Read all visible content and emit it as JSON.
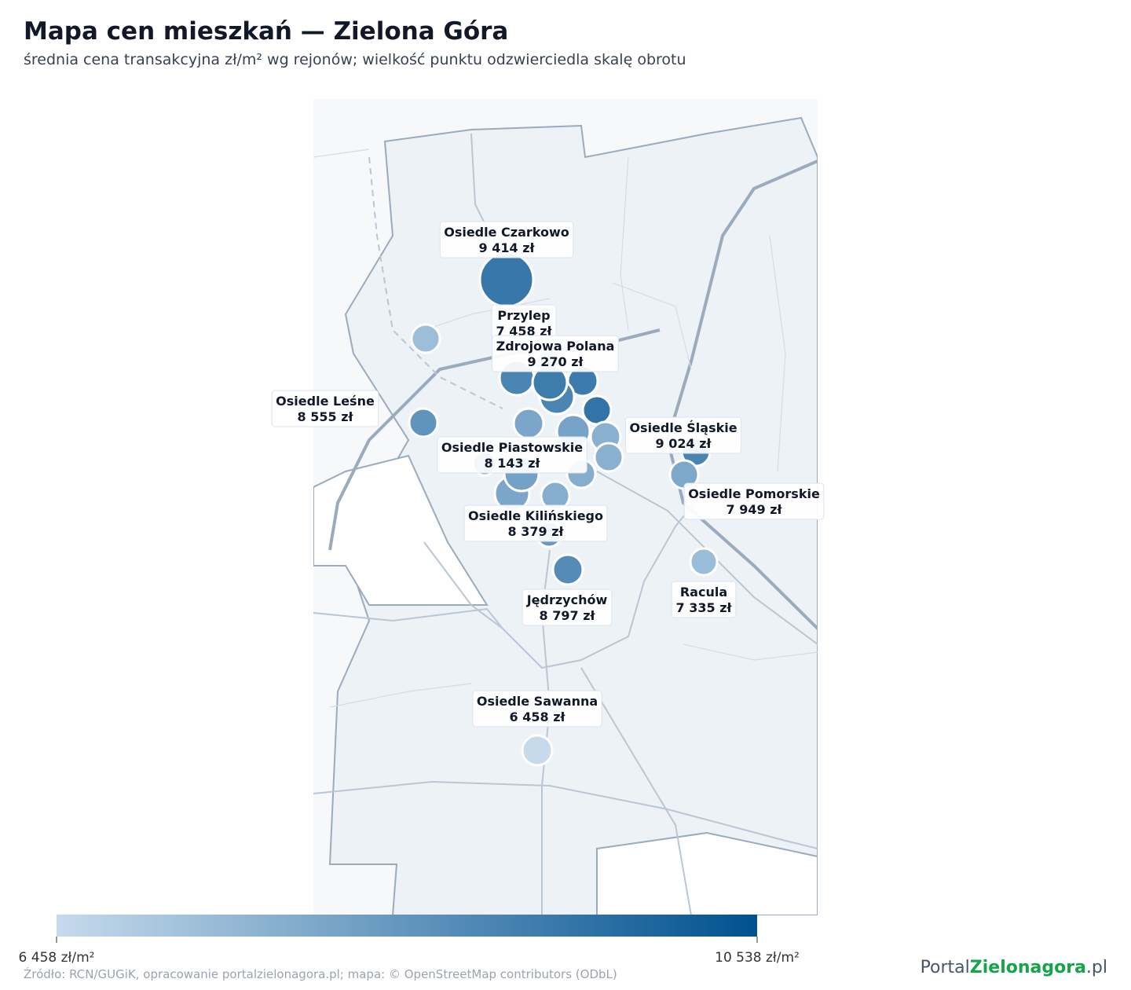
{
  "header": {
    "title": "Mapa cen mieszkań — Zielona Góra",
    "subtitle": "średnia cena transakcyjna zł/m² wg rejonów; wielkość punktu odzwierciedla skalę obrotu"
  },
  "districts": {
    "names": [
      "Osiedle Czarkowo",
      "Przylep",
      "Zdrojowa Polana",
      "Osiedle Leśne",
      "Osiedle Piastowskie",
      "Osiedle Śląskie",
      "Osiedle Pomorskie",
      "Osiedle Kilińskiego",
      "Jędrzychów",
      "Racula",
      "Osiedle Sawanna"
    ],
    "values": [
      9414,
      7458,
      9270,
      8555,
      8143,
      9024,
      7949,
      8379,
      8797,
      7335,
      6458
    ],
    "value_labels": [
      "9 414 zł",
      "7 458 zł",
      "9 270 zł",
      "8 555 zł",
      "8 143 zł",
      "9 024 zł",
      "7 949 zł",
      "8 379 zł",
      "8 797 zł",
      "7 335 zł",
      "6 458 zł"
    ]
  },
  "other_values": [
    7300,
    9000,
    9300,
    9000,
    9500,
    8000,
    8100,
    7700,
    7700,
    7800,
    8000,
    7800,
    8400
  ],
  "colorbar": {
    "min": 6458,
    "max": 10538,
    "min_label": "6 458 zł/m²",
    "max_label": "10 538 zł/m²",
    "colors": [
      "#c6daec",
      "#00518f"
    ]
  },
  "source": "Źródło: RCN/GUGiK, opracowanie portalzielonagora.pl; mapa: © OpenStreetMap contributors (ODbL)",
  "logo": [
    "Portal",
    "Zielonagora",
    ".pl"
  ]
}
